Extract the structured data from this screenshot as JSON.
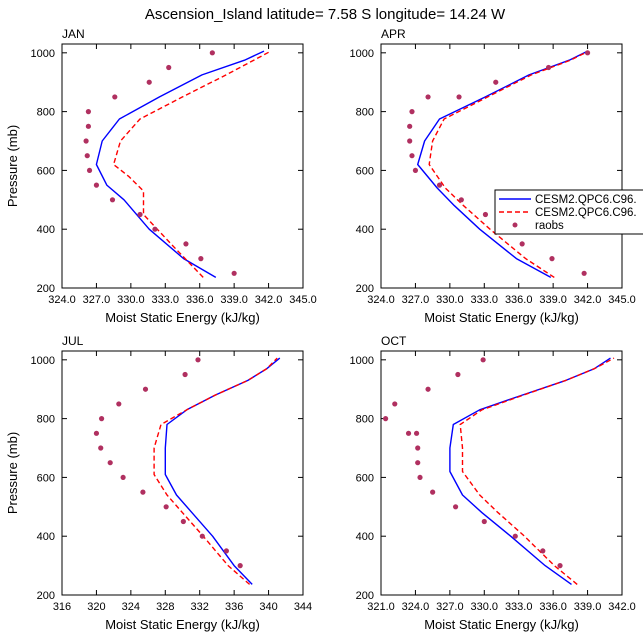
{
  "figure": {
    "title": "Ascension_Island  latitude= 7.58 S longitude= 14.24 W"
  },
  "legend": {
    "items": [
      {
        "label": "CESM2.QPC6.C96.",
        "color": "#0000ff",
        "style": "solid"
      },
      {
        "label": "CESM2.QPC6.C96.",
        "color": "#ff0000",
        "style": "dashed"
      },
      {
        "label": "raobs",
        "color": "#b03060",
        "style": "marker"
      }
    ]
  },
  "chart_data": [
    {
      "type": "line",
      "panel": "JAN",
      "title": "JAN",
      "xlabel": "Moist Static Energy (kJ/kg)",
      "ylabel": "Pressure (mb)",
      "xlim": [
        324,
        345
      ],
      "ylim": [
        1030,
        200
      ],
      "xticks": [
        324,
        327,
        330,
        333,
        336,
        339,
        342,
        345
      ],
      "xtick_labels": [
        "324.0",
        "327.0",
        "330.0",
        "333.0",
        "336.0",
        "339.0",
        "342.0",
        "345.0"
      ],
      "yticks": [
        200,
        400,
        600,
        800,
        1000
      ],
      "ytick_labels": [
        "200",
        "400",
        "600",
        "800",
        "1000"
      ],
      "series": [
        {
          "name": "CESM2.QPC6.C96.",
          "color": "#0000ff",
          "style": "solid",
          "x": [
            337.4,
            334.6,
            331.6,
            329.4,
            327.9,
            327.0,
            327.5,
            329.0,
            332.5,
            336.2,
            339.9,
            341.6
          ],
          "y": [
            236,
            300,
            400,
            500,
            550,
            620,
            700,
            775,
            850,
            925,
            975,
            1006
          ]
        },
        {
          "name": "CESM2.QPC6.C96.",
          "color": "#ff0000",
          "style": "dashed",
          "x": [
            336.3,
            333.5,
            331.1,
            331.1,
            329.8,
            328.5,
            329.1,
            330.8,
            334.5,
            338.3,
            342.2
          ],
          "y": [
            236,
            350,
            450,
            530,
            580,
            620,
            700,
            775,
            850,
            925,
            1006
          ]
        },
        {
          "name": "raobs",
          "color": "#b03060",
          "style": "marker",
          "x": [
            339.0,
            336.1,
            334.8,
            332.1,
            330.8,
            328.4,
            327.0,
            326.4,
            326.2,
            326.1,
            326.3,
            326.3,
            328.6,
            331.6,
            333.3,
            337.1
          ],
          "y": [
            250,
            300,
            350,
            400,
            450,
            500,
            550,
            600,
            650,
            700,
            750,
            800,
            850,
            900,
            950,
            1000
          ]
        }
      ]
    },
    {
      "type": "line",
      "panel": "APR",
      "title": "APR",
      "xlabel": "Moist Static Energy (kJ/kg)",
      "ylabel": "",
      "xlim": [
        324,
        345
      ],
      "ylim": [
        1030,
        200
      ],
      "xticks": [
        324,
        327,
        330,
        333,
        336,
        339,
        342,
        345
      ],
      "xtick_labels": [
        "324.0",
        "327.0",
        "330.0",
        "333.0",
        "336.0",
        "339.0",
        "342.0",
        "345.0"
      ],
      "yticks": [
        200,
        400,
        600,
        800,
        1000
      ],
      "ytick_labels": [
        "200",
        "400",
        "600",
        "800",
        "1000"
      ],
      "series": [
        {
          "name": "CESM2.QPC6.C96.",
          "color": "#0000ff",
          "style": "solid",
          "x": [
            338.8,
            335.8,
            332.6,
            330.4,
            328.9,
            327.2,
            327.8,
            329.1,
            333.1,
            336.9,
            340.4,
            342.0
          ],
          "y": [
            236,
            300,
            400,
            480,
            540,
            620,
            700,
            775,
            850,
            925,
            975,
            1006
          ]
        },
        {
          "name": "CESM2.QPC6.C96.",
          "color": "#ff0000",
          "style": "dashed",
          "x": [
            339.1,
            336.6,
            333.5,
            331.2,
            329.6,
            328.2,
            328.5,
            329.5,
            333.3,
            337.1,
            340.5,
            342.1
          ],
          "y": [
            236,
            300,
            400,
            480,
            540,
            620,
            700,
            775,
            850,
            925,
            975,
            1006
          ]
        },
        {
          "name": "raobs",
          "color": "#b03060",
          "style": "marker",
          "x": [
            341.7,
            338.9,
            336.3,
            334.8,
            333.1,
            331.0,
            329.1,
            327.0,
            326.7,
            326.5,
            326.5,
            326.7,
            328.1,
            330.8,
            334.0,
            338.6,
            342.0
          ],
          "y": [
            250,
            300,
            350,
            400,
            450,
            500,
            550,
            600,
            650,
            700,
            750,
            800,
            850,
            850,
            900,
            950,
            1000
          ]
        }
      ]
    },
    {
      "type": "line",
      "panel": "JUL",
      "title": "JUL",
      "xlabel": "Moist Static Energy (kJ/kg)",
      "ylabel": "Pressure (mb)",
      "xlim": [
        316,
        344
      ],
      "ylim": [
        1030,
        200
      ],
      "xticks": [
        316,
        320,
        324,
        328,
        332,
        336,
        340,
        344
      ],
      "xtick_labels": [
        "316",
        "320",
        "324",
        "328",
        "332",
        "336",
        "340",
        "344"
      ],
      "yticks": [
        200,
        400,
        600,
        800,
        1000
      ],
      "ytick_labels": [
        "200",
        "400",
        "600",
        "800",
        "1000"
      ],
      "series": [
        {
          "name": "CESM2.QPC6.C96.",
          "color": "#0000ff",
          "style": "solid",
          "x": [
            338.1,
            336.0,
            333.5,
            331.1,
            329.3,
            328.0,
            328.0,
            328.2,
            330.5,
            333.8,
            337.6,
            339.8,
            341.3
          ],
          "y": [
            236,
            300,
            400,
            480,
            540,
            610,
            700,
            780,
            830,
            880,
            930,
            970,
            1006
          ]
        },
        {
          "name": "CESM2.QPC6.C96.",
          "color": "#ff0000",
          "style": "dashed",
          "x": [
            337.8,
            335.3,
            332.4,
            330.0,
            328.2,
            326.7,
            326.7,
            327.5,
            330.5,
            333.8,
            337.6,
            339.8,
            341.0
          ],
          "y": [
            236,
            300,
            400,
            480,
            540,
            610,
            700,
            780,
            830,
            880,
            930,
            970,
            1006
          ]
        },
        {
          "name": "raobs",
          "color": "#b03060",
          "style": "marker",
          "x": [
            336.7,
            335.1,
            332.3,
            330.1,
            328.1,
            325.4,
            323.1,
            321.6,
            320.5,
            320.0,
            320.6,
            322.6,
            325.7,
            330.3,
            331.8
          ],
          "y": [
            300,
            350,
            400,
            450,
            500,
            550,
            600,
            650,
            700,
            750,
            800,
            850,
            900,
            950,
            1000
          ]
        }
      ]
    },
    {
      "type": "line",
      "panel": "OCT",
      "title": "OCT",
      "xlabel": "Moist Static Energy (kJ/kg)",
      "ylabel": "",
      "xlim": [
        321,
        342
      ],
      "ylim": [
        1030,
        200
      ],
      "xticks": [
        321,
        324,
        327,
        330,
        333,
        336,
        339,
        342
      ],
      "xtick_labels": [
        "321.0",
        "324.0",
        "327.0",
        "330.0",
        "333.0",
        "336.0",
        "339.0",
        "342.0"
      ],
      "yticks": [
        200,
        400,
        600,
        800,
        1000
      ],
      "ytick_labels": [
        "200",
        "400",
        "600",
        "800",
        "1000"
      ],
      "series": [
        {
          "name": "CESM2.QPC6.C96.",
          "color": "#0000ff",
          "style": "solid",
          "x": [
            337.6,
            335.3,
            332.3,
            329.8,
            328.1,
            327.0,
            327.0,
            327.3,
            329.6,
            333.3,
            337.1,
            339.6,
            341.0
          ],
          "y": [
            236,
            300,
            400,
            480,
            540,
            620,
            700,
            780,
            830,
            880,
            930,
            970,
            1006
          ]
        },
        {
          "name": "CESM2.QPC6.C96.",
          "color": "#ff0000",
          "style": "dashed",
          "x": [
            338.1,
            336.1,
            333.5,
            331.2,
            329.6,
            328.1,
            328.1,
            327.9,
            329.8,
            333.4,
            337.1,
            339.6,
            341.3
          ],
          "y": [
            236,
            300,
            400,
            480,
            540,
            620,
            700,
            780,
            830,
            880,
            930,
            970,
            1006
          ]
        },
        {
          "name": "raobs",
          "color": "#b03060",
          "style": "marker",
          "x": [
            336.6,
            335.1,
            332.7,
            330.0,
            327.5,
            325.5,
            324.4,
            324.2,
            324.2,
            324.1,
            323.4,
            321.4,
            322.2,
            325.1,
            327.7,
            329.9
          ],
          "y": [
            300,
            350,
            400,
            450,
            500,
            550,
            600,
            650,
            700,
            750,
            750,
            800,
            850,
            900,
            950,
            1000
          ]
        }
      ]
    }
  ]
}
